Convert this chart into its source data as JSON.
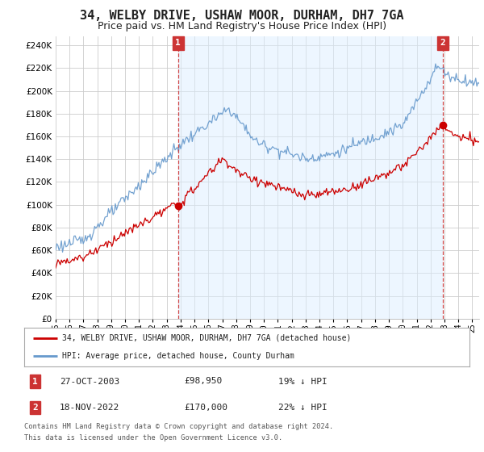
{
  "title": "34, WELBY DRIVE, USHAW MOOR, DURHAM, DH7 7GA",
  "subtitle": "Price paid vs. HM Land Registry's House Price Index (HPI)",
  "ylabel_ticks": [
    0,
    20000,
    40000,
    60000,
    80000,
    100000,
    120000,
    140000,
    160000,
    180000,
    200000,
    220000,
    240000
  ],
  "ylim": [
    0,
    248000
  ],
  "xlim_start": 1995.0,
  "xlim_end": 2025.5,
  "purchase1_x": 2003.82,
  "purchase1_y": 98950,
  "purchase2_x": 2022.88,
  "purchase2_y": 170000,
  "legend1": "34, WELBY DRIVE, USHAW MOOR, DURHAM, DH7 7GA (detached house)",
  "legend2": "HPI: Average price, detached house, County Durham",
  "table_row1": [
    "1",
    "27-OCT-2003",
    "£98,950",
    "19% ↓ HPI"
  ],
  "table_row2": [
    "2",
    "18-NOV-2022",
    "£170,000",
    "22% ↓ HPI"
  ],
  "footer1": "Contains HM Land Registry data © Crown copyright and database right 2024.",
  "footer2": "This data is licensed under the Open Government Licence v3.0.",
  "line_color_red": "#cc0000",
  "line_color_blue": "#6699cc",
  "fill_color_blue": "#ddeeff",
  "annotation_box_color": "#cc3333",
  "background_color": "#ffffff",
  "grid_color": "#cccccc",
  "title_fontsize": 11,
  "subtitle_fontsize": 9
}
